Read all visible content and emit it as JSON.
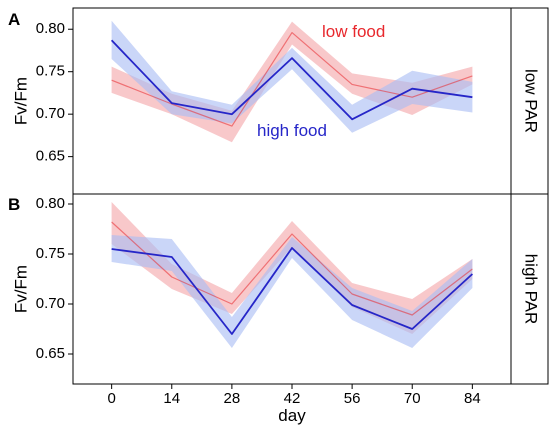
{
  "figure": {
    "xlabel": "day",
    "ylabel": "Fv/Fm",
    "legend_low_food": "low food",
    "legend_high_food": "high food",
    "colors": {
      "low_food": "#e8282d",
      "high_food": "#2626c8",
      "low_fill": "#f4a6aa",
      "high_fill": "#a9bdf3"
    }
  },
  "chart_data": [
    {
      "type": "line",
      "panel_label": "A",
      "strip_label": "low PAR",
      "x": [
        0,
        14,
        28,
        42,
        56,
        70,
        84
      ],
      "xlim": [
        -9,
        93
      ],
      "ylim": [
        0.606,
        0.825
      ],
      "yticks": [
        0.65,
        0.7,
        0.75,
        0.8
      ],
      "ytick_labels": [
        "0.65",
        "0.70",
        "0.75",
        "0.80"
      ],
      "series": [
        {
          "name": "low food",
          "values": [
            0.74,
            0.712,
            0.686,
            0.796,
            0.735,
            0.72,
            0.745
          ],
          "lower": [
            0.725,
            0.7,
            0.667,
            0.782,
            0.724,
            0.699,
            0.735
          ],
          "upper": [
            0.756,
            0.724,
            0.704,
            0.809,
            0.748,
            0.737,
            0.756
          ]
        },
        {
          "name": "high food",
          "values": [
            0.787,
            0.713,
            0.7,
            0.766,
            0.694,
            0.73,
            0.72
          ],
          "lower": [
            0.765,
            0.7,
            0.689,
            0.753,
            0.678,
            0.712,
            0.702
          ],
          "upper": [
            0.81,
            0.727,
            0.711,
            0.778,
            0.711,
            0.751,
            0.738
          ]
        }
      ]
    },
    {
      "type": "line",
      "panel_label": "B",
      "strip_label": "high PAR",
      "x": [
        0,
        14,
        28,
        42,
        56,
        70,
        84
      ],
      "xlim": [
        -9,
        93
      ],
      "ylim": [
        0.62,
        0.81
      ],
      "yticks": [
        0.65,
        0.7,
        0.75,
        0.8
      ],
      "ytick_labels": [
        "0.65",
        "0.70",
        "0.75",
        "0.80"
      ],
      "x_tick_labels": [
        "0",
        "14",
        "28",
        "42",
        "56",
        "70",
        "84"
      ],
      "series": [
        {
          "name": "low food",
          "values": [
            0.782,
            0.727,
            0.7,
            0.77,
            0.71,
            0.689,
            0.735
          ],
          "lower": [
            0.76,
            0.715,
            0.69,
            0.757,
            0.697,
            0.67,
            0.725
          ],
          "upper": [
            0.802,
            0.74,
            0.711,
            0.783,
            0.721,
            0.705,
            0.745
          ]
        },
        {
          "name": "high food",
          "values": [
            0.755,
            0.747,
            0.67,
            0.756,
            0.699,
            0.675,
            0.73
          ],
          "lower": [
            0.742,
            0.733,
            0.656,
            0.746,
            0.684,
            0.656,
            0.716
          ],
          "upper": [
            0.769,
            0.765,
            0.687,
            0.767,
            0.716,
            0.693,
            0.745
          ]
        }
      ]
    }
  ]
}
